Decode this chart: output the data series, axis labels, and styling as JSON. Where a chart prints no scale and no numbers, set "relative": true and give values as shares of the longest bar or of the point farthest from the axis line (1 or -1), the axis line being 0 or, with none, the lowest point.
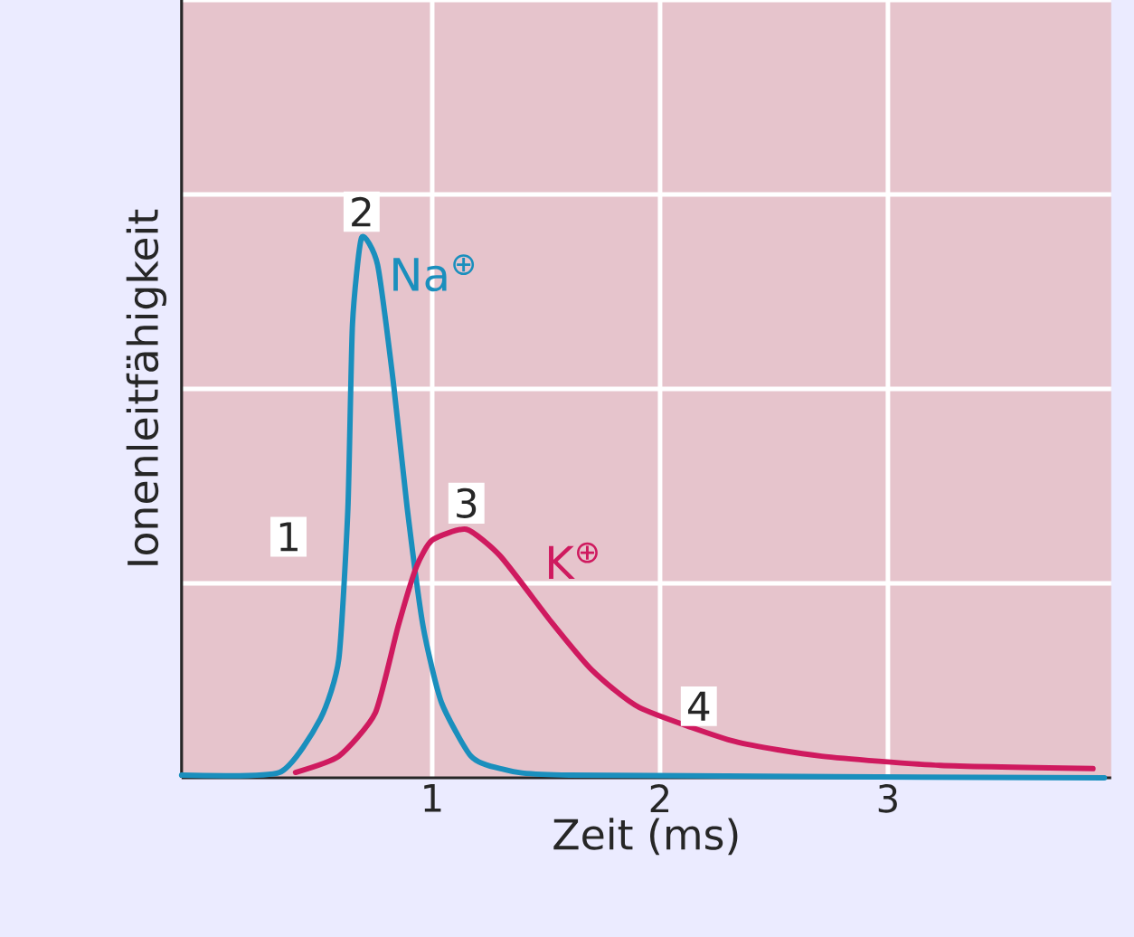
{
  "chart_data": {
    "type": "line",
    "xlabel": "Zeit (ms)",
    "ylabel": "Ionenleitfähigkeit",
    "relative": true,
    "xlim": [
      -0.1,
      3.98
    ],
    "xticks": [
      1,
      2,
      3
    ],
    "grid": true,
    "legend": false,
    "marker": "none",
    "line_style": "solid",
    "series": [
      {
        "name": "Na$^{⊕}$",
        "color": "#1a8fbd",
        "x": [
          -0.1,
          0.33,
          0.51,
          0.59,
          0.63,
          0.65,
          0.69,
          0.76,
          0.83,
          0.89,
          0.96,
          1.04,
          1.17,
          1.3,
          1.6,
          3.95
        ],
        "values": [
          0.005,
          0.01,
          0.11,
          0.22,
          0.5,
          0.84,
          1.0,
          0.95,
          0.73,
          0.5,
          0.28,
          0.14,
          0.04,
          0.017,
          0.005,
          0.0
        ]
      },
      {
        "name": "K$^{⊕}$",
        "color": "#cf1a5f",
        "x": [
          0.4,
          0.59,
          0.75,
          0.85,
          0.93,
          1.0,
          1.15,
          1.3,
          1.52,
          1.7,
          1.91,
          2.33,
          2.71,
          3.23,
          3.9
        ],
        "values": [
          0.01,
          0.04,
          0.12,
          0.28,
          0.39,
          0.44,
          0.46,
          0.41,
          0.29,
          0.2,
          0.13,
          0.067,
          0.04,
          0.023,
          0.017
        ]
      }
    ],
    "annotations": [
      "1",
      {
        "text": "2",
        "x": 0.69,
        "y": 1.0
      },
      {
        "text": "3",
        "x": 1.15,
        "y": 0.46
      },
      {
        "text": "4",
        "x": 2.17,
        "y": 0.085
      }
    ]
  }
}
